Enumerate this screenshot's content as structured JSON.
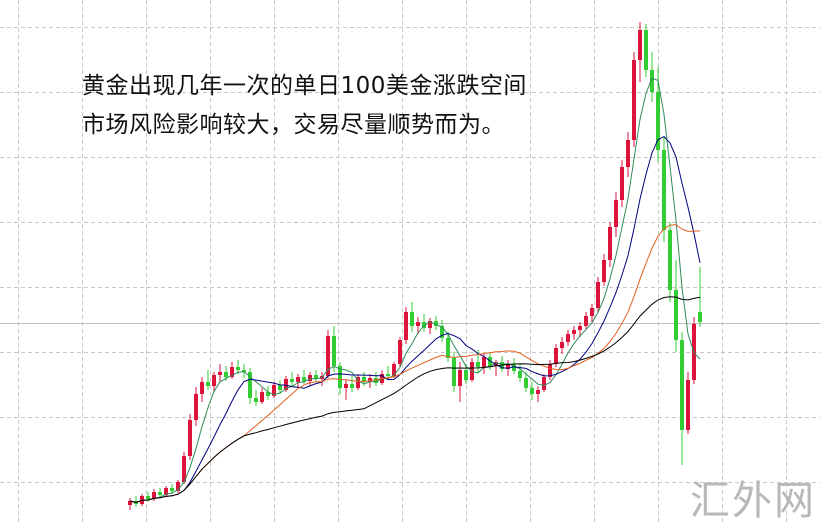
{
  "annotation": {
    "line1": "黄金出现几年一次的单日100美金涨跌空间",
    "line2": "市场风险影响较大，交易尽量顺势而为。"
  },
  "watermark": "汇外网",
  "chart_data": {
    "type": "candlestick",
    "title": "",
    "xlabel": "",
    "ylabel": "",
    "grid": true,
    "colors": {
      "up": "#dc143c",
      "down": "#32cd32",
      "ma5": "#2e8b57",
      "ma10": "#000080",
      "ma20": "#e0601e",
      "ma40": "#000000",
      "grid": "#c8c8c8"
    },
    "moving_averages": [
      5,
      10,
      20,
      40
    ],
    "ohlc": [
      [
        17,
        24,
        12,
        21
      ],
      [
        21,
        26,
        15,
        18
      ],
      [
        18,
        28,
        16,
        26
      ],
      [
        26,
        30,
        20,
        23
      ],
      [
        23,
        33,
        21,
        30
      ],
      [
        30,
        34,
        24,
        27
      ],
      [
        27,
        36,
        25,
        34
      ],
      [
        34,
        38,
        28,
        31
      ],
      [
        31,
        42,
        29,
        40
      ],
      [
        40,
        70,
        38,
        66
      ],
      [
        66,
        108,
        62,
        102
      ],
      [
        102,
        135,
        96,
        128
      ],
      [
        128,
        145,
        120,
        140
      ],
      [
        140,
        152,
        132,
        136
      ],
      [
        136,
        150,
        130,
        147
      ],
      [
        147,
        158,
        140,
        150
      ],
      [
        150,
        156,
        141,
        145
      ],
      [
        145,
        160,
        143,
        155
      ],
      [
        155,
        162,
        148,
        152
      ],
      [
        152,
        158,
        144,
        150
      ],
      [
        150,
        154,
        118,
        124
      ],
      [
        124,
        132,
        116,
        120
      ],
      [
        120,
        134,
        118,
        130
      ],
      [
        130,
        136,
        122,
        126
      ],
      [
        126,
        140,
        124,
        137
      ],
      [
        137,
        142,
        128,
        132
      ],
      [
        132,
        146,
        130,
        143
      ],
      [
        143,
        150,
        136,
        140
      ],
      [
        140,
        148,
        134,
        145
      ],
      [
        145,
        152,
        138,
        141
      ],
      [
        141,
        150,
        136,
        147
      ],
      [
        147,
        152,
        140,
        143
      ],
      [
        143,
        150,
        136,
        146
      ],
      [
        146,
        192,
        144,
        186
      ],
      [
        186,
        196,
        150,
        156
      ],
      [
        156,
        160,
        128,
        134
      ],
      [
        134,
        142,
        122,
        138
      ],
      [
        138,
        146,
        130,
        134
      ],
      [
        134,
        148,
        132,
        145
      ],
      [
        145,
        150,
        136,
        140
      ],
      [
        140,
        148,
        134,
        144
      ],
      [
        144,
        150,
        136,
        139
      ],
      [
        139,
        152,
        137,
        148
      ],
      [
        148,
        156,
        142,
        146
      ],
      [
        146,
        160,
        144,
        158
      ],
      [
        158,
        185,
        155,
        182
      ],
      [
        182,
        215,
        178,
        210
      ],
      [
        210,
        220,
        190,
        196
      ],
      [
        196,
        205,
        188,
        200
      ],
      [
        200,
        208,
        190,
        194
      ],
      [
        194,
        204,
        188,
        201
      ],
      [
        201,
        206,
        192,
        196
      ],
      [
        196,
        202,
        180,
        184
      ],
      [
        184,
        190,
        160,
        164
      ],
      [
        164,
        170,
        130,
        136
      ],
      [
        136,
        160,
        120,
        152
      ],
      [
        152,
        158,
        138,
        142
      ],
      [
        142,
        164,
        140,
        160
      ],
      [
        160,
        172,
        150,
        155
      ],
      [
        155,
        168,
        148,
        165
      ],
      [
        165,
        170,
        152,
        156
      ],
      [
        156,
        162,
        146,
        160
      ],
      [
        160,
        166,
        150,
        153
      ],
      [
        153,
        162,
        146,
        158
      ],
      [
        158,
        164,
        148,
        151
      ],
      [
        151,
        158,
        140,
        144
      ],
      [
        144,
        150,
        130,
        134
      ],
      [
        134,
        140,
        122,
        128
      ],
      [
        128,
        136,
        120,
        132
      ],
      [
        132,
        148,
        130,
        145
      ],
      [
        145,
        162,
        142,
        158
      ],
      [
        158,
        178,
        155,
        174
      ],
      [
        174,
        185,
        168,
        180
      ],
      [
        180,
        192,
        176,
        188
      ],
      [
        188,
        196,
        182,
        192
      ],
      [
        192,
        200,
        185,
        196
      ],
      [
        196,
        210,
        192,
        206
      ],
      [
        206,
        218,
        200,
        214
      ],
      [
        214,
        245,
        210,
        240
      ],
      [
        240,
        268,
        236,
        262
      ],
      [
        262,
        300,
        255,
        295
      ],
      [
        295,
        330,
        285,
        322
      ],
      [
        322,
        362,
        315,
        355
      ],
      [
        355,
        390,
        345,
        382
      ],
      [
        382,
        470,
        375,
        462
      ],
      [
        462,
        500,
        440,
        492
      ],
      [
        492,
        498,
        445,
        452
      ],
      [
        452,
        470,
        420,
        430
      ],
      [
        430,
        455,
        360,
        372
      ],
      [
        372,
        385,
        280,
        292
      ],
      [
        292,
        300,
        220,
        232
      ],
      [
        232,
        262,
        170,
        182
      ],
      [
        182,
        190,
        57,
        92
      ],
      [
        92,
        150,
        88,
        142
      ],
      [
        142,
        205,
        138,
        198
      ],
      [
        210,
        255,
        195,
        200
      ]
    ]
  }
}
